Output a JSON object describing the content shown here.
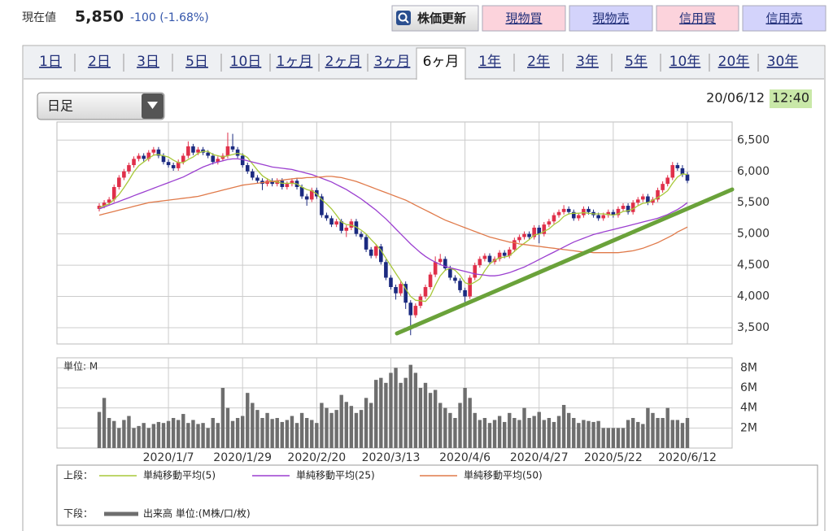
{
  "header": {
    "label": "現在値",
    "price": "5,850",
    "change": "-100 (-1.68%)"
  },
  "buttons": [
    "株価更新",
    "現物買",
    "現物売",
    "信用買",
    "信用売"
  ],
  "tabs": [
    "1日",
    "2日",
    "3日",
    "5日",
    "10日",
    "1ヶ月",
    "2ヶ月",
    "3ヶ月",
    "6ヶ月",
    "1年",
    "2年",
    "3年",
    "5年",
    "10年",
    "20年",
    "30年"
  ],
  "selected_tab": 8,
  "dropdown": "日足",
  "timestamp": {
    "date": "20/06/12",
    "time": "12:40"
  },
  "chart_data": [
    {
      "type": "candlestick",
      "color_up": "#e0304a",
      "color_down": "#1b2a80",
      "ylim": [
        3240,
        6790
      ],
      "yticks": [
        {
          "value": 3500,
          "label": "3,500"
        },
        {
          "value": 4000,
          "label": "4,000"
        },
        {
          "value": 4500,
          "label": "4,500"
        },
        {
          "value": 5000,
          "label": "5,000"
        },
        {
          "value": 5500,
          "label": "5,500"
        },
        {
          "value": 6000,
          "label": "6,000"
        },
        {
          "value": 6500,
          "label": "6,500"
        }
      ],
      "grid": true,
      "legend_prefix": "上段：",
      "open": [
        5400,
        5450,
        5500,
        5550,
        5750,
        5900,
        6000,
        6100,
        6200,
        6250,
        6200,
        6300,
        6350,
        6250,
        6150,
        6100,
        6050,
        6150,
        6250,
        6400,
        6300,
        6350,
        6300,
        6250,
        6150,
        6200,
        6250,
        6400,
        6350,
        6250,
        6100,
        6000,
        5900,
        5850,
        5800,
        5850,
        5800,
        5850,
        5750,
        5800,
        5850,
        5750,
        5600,
        5550,
        5700,
        5600,
        5300,
        5250,
        5150,
        5200,
        5050,
        5100,
        5200,
        5000,
        4950,
        4750,
        4650,
        4800,
        4550,
        4300,
        4150,
        4050,
        4200,
        3900,
        3700,
        3850,
        4000,
        4150,
        4350,
        4550,
        4600,
        4450,
        4300,
        4250,
        4100,
        4000,
        4300,
        4500,
        4600,
        4650,
        4550,
        4600,
        4700,
        4650,
        4750,
        4900,
        4950,
        5000,
        4950,
        5100,
        5000,
        5150,
        5200,
        5300,
        5350,
        5400,
        5350,
        5250,
        5300,
        5400,
        5350,
        5300,
        5250,
        5300,
        5350,
        5300,
        5400,
        5450,
        5350,
        5500,
        5550,
        5600,
        5500,
        5550,
        5700,
        5800,
        5900,
        6100,
        6050,
        5950
      ],
      "high": [
        5490,
        5540,
        5590,
        5790,
        5940,
        6040,
        6140,
        6240,
        6290,
        6290,
        6340,
        6390,
        6390,
        6290,
        6190,
        6140,
        6190,
        6290,
        6480,
        6440,
        6390,
        6390,
        6340,
        6290,
        6240,
        6290,
        6620,
        6600,
        6390,
        6290,
        6140,
        6040,
        5940,
        5890,
        5890,
        5890,
        5890,
        5890,
        5840,
        5890,
        5890,
        5790,
        5640,
        5740,
        5740,
        5640,
        5340,
        5290,
        5240,
        5240,
        5140,
        5240,
        5240,
        5040,
        4990,
        4790,
        4840,
        4840,
        4590,
        4340,
        4190,
        4240,
        4240,
        3940,
        3890,
        4040,
        4190,
        4390,
        4640,
        4680,
        4640,
        4490,
        4340,
        4290,
        4140,
        4340,
        4540,
        4640,
        4690,
        4690,
        4640,
        4740,
        4740,
        4790,
        4940,
        4990,
        5040,
        5040,
        5140,
        5140,
        5190,
        5240,
        5340,
        5390,
        5460,
        5440,
        5390,
        5340,
        5440,
        5440,
        5390,
        5340,
        5340,
        5390,
        5390,
        5440,
        5490,
        5490,
        5540,
        5590,
        5640,
        5640,
        5590,
        5740,
        5840,
        5940,
        6150,
        6140,
        6100,
        5990
      ],
      "low": [
        5360,
        5410,
        5460,
        5510,
        5710,
        5860,
        5960,
        6060,
        6160,
        6160,
        6160,
        6260,
        6210,
        6110,
        6060,
        6010,
        6010,
        6110,
        6210,
        6260,
        6260,
        6260,
        6210,
        6110,
        6110,
        6160,
        6210,
        6310,
        6210,
        6060,
        5960,
        5860,
        5810,
        5700,
        5760,
        5760,
        5760,
        5710,
        5710,
        5760,
        5710,
        5560,
        5450,
        5510,
        5560,
        5260,
        5210,
        5110,
        5110,
        5010,
        4950,
        5060,
        4960,
        4910,
        4710,
        4610,
        4610,
        4510,
        4260,
        4110,
        3950,
        4010,
        3800,
        3380,
        3660,
        3810,
        3960,
        4110,
        4310,
        4510,
        4410,
        4260,
        4210,
        4060,
        3850,
        3960,
        4260,
        4460,
        4560,
        4510,
        4510,
        4560,
        4610,
        4610,
        4710,
        4860,
        4910,
        4910,
        4910,
        4850,
        4960,
        5110,
        5160,
        5260,
        5310,
        5310,
        5210,
        5210,
        5260,
        5310,
        5260,
        5210,
        5210,
        5260,
        5260,
        5260,
        5360,
        5310,
        5310,
        5460,
        5510,
        5460,
        5460,
        5510,
        5660,
        5760,
        5860,
        6010,
        5910,
        5810
      ],
      "close": [
        5450,
        5500,
        5550,
        5750,
        5900,
        6000,
        6100,
        6200,
        6250,
        6200,
        6300,
        6350,
        6250,
        6150,
        6100,
        6050,
        6150,
        6250,
        6400,
        6300,
        6350,
        6300,
        6250,
        6150,
        6200,
        6250,
        6400,
        6350,
        6250,
        6100,
        6000,
        5900,
        5850,
        5800,
        5850,
        5800,
        5850,
        5750,
        5800,
        5850,
        5750,
        5600,
        5550,
        5700,
        5600,
        5300,
        5250,
        5150,
        5200,
        5050,
        5100,
        5200,
        5000,
        4950,
        4750,
        4650,
        4800,
        4550,
        4300,
        4150,
        4050,
        4200,
        3900,
        3700,
        3850,
        4000,
        4150,
        4350,
        4550,
        4600,
        4450,
        4300,
        4250,
        4100,
        4000,
        4300,
        4500,
        4600,
        4650,
        4550,
        4600,
        4700,
        4650,
        4750,
        4900,
        4950,
        5000,
        4950,
        5100,
        5000,
        5150,
        5200,
        5300,
        5350,
        5400,
        5350,
        5250,
        5300,
        5400,
        5350,
        5300,
        5250,
        5300,
        5350,
        5300,
        5400,
        5450,
        5350,
        5500,
        5550,
        5600,
        5500,
        5550,
        5700,
        5800,
        5900,
        6100,
        6050,
        5950,
        5850
      ],
      "series": [
        {
          "name": "単純移動平均(5)",
          "color": "#a8c83a",
          "values": [
            5420,
            5450,
            5480,
            5550,
            5630,
            5740,
            5860,
            5990,
            6090,
            6150,
            6210,
            6260,
            6270,
            6250,
            6230,
            6180,
            6140,
            6140,
            6190,
            6230,
            6290,
            6320,
            6320,
            6270,
            6250,
            6230,
            6250,
            6270,
            6290,
            6270,
            6220,
            6120,
            6020,
            5930,
            5880,
            5840,
            5830,
            5810,
            5810,
            5810,
            5800,
            5750,
            5710,
            5690,
            5640,
            5550,
            5480,
            5400,
            5300,
            5190,
            5150,
            5140,
            5110,
            5060,
            5000,
            4910,
            4830,
            4740,
            4610,
            4490,
            4370,
            4250,
            4120,
            4000,
            3940,
            3930,
            3920,
            4010,
            4180,
            4330,
            4420,
            4450,
            4420,
            4340,
            4220,
            4190,
            4230,
            4280,
            4410,
            4520,
            4580,
            4620,
            4630,
            4650,
            4720,
            4790,
            4850,
            4910,
            4980,
            5000,
            5040,
            5080,
            5150,
            5200,
            5280,
            5320,
            5330,
            5330,
            5340,
            5330,
            5320,
            5320,
            5320,
            5310,
            5300,
            5320,
            5360,
            5370,
            5400,
            5450,
            5490,
            5500,
            5540,
            5580,
            5630,
            5690,
            5810,
            5910,
            5960,
            5950
          ]
        },
        {
          "name": "単純移動平均(25)",
          "color": "#9b3fd0",
          "values": [
            5400,
            5430,
            5460,
            5490,
            5520,
            5550,
            5580,
            5610,
            5640,
            5670,
            5700,
            5730,
            5760,
            5790,
            5820,
            5850,
            5880,
            5910,
            5950,
            5990,
            6030,
            6070,
            6100,
            6130,
            6150,
            6170,
            6190,
            6200,
            6200,
            6190,
            6170,
            6150,
            6130,
            6110,
            6090,
            6070,
            6060,
            6050,
            6040,
            6030,
            6010,
            5990,
            5970,
            5950,
            5920,
            5890,
            5860,
            5830,
            5790,
            5750,
            5710,
            5660,
            5610,
            5560,
            5500,
            5440,
            5380,
            5310,
            5240,
            5160,
            5080,
            5000,
            4920,
            4840,
            4770,
            4700,
            4640,
            4590,
            4550,
            4510,
            4480,
            4460,
            4440,
            4420,
            4400,
            4380,
            4360,
            4350,
            4340,
            4330,
            4330,
            4340,
            4360,
            4380,
            4410,
            4440,
            4470,
            4510,
            4550,
            4590,
            4630,
            4670,
            4710,
            4750,
            4790,
            4830,
            4870,
            4900,
            4930,
            4960,
            4990,
            5010,
            5030,
            5050,
            5070,
            5090,
            5110,
            5130,
            5150,
            5170,
            5190,
            5210,
            5230,
            5250,
            5280,
            5310,
            5350,
            5390,
            5440,
            5500
          ]
        },
        {
          "name": "単純移動平均(50)",
          "color": "#e07a4a",
          "values": [
            5300,
            5320,
            5340,
            5360,
            5380,
            5400,
            5420,
            5440,
            5460,
            5480,
            5500,
            5510,
            5520,
            5530,
            5540,
            5550,
            5560,
            5570,
            5580,
            5590,
            5600,
            5620,
            5640,
            5660,
            5680,
            5700,
            5720,
            5740,
            5760,
            5780,
            5790,
            5800,
            5810,
            5820,
            5830,
            5840,
            5850,
            5860,
            5870,
            5880,
            5890,
            5890,
            5900,
            5900,
            5910,
            5910,
            5920,
            5920,
            5910,
            5900,
            5880,
            5860,
            5840,
            5810,
            5780,
            5750,
            5720,
            5690,
            5660,
            5630,
            5600,
            5570,
            5540,
            5500,
            5460,
            5420,
            5380,
            5340,
            5300,
            5260,
            5220,
            5190,
            5160,
            5130,
            5100,
            5070,
            5040,
            5010,
            4980,
            4950,
            4930,
            4910,
            4890,
            4870,
            4860,
            4840,
            4830,
            4820,
            4810,
            4800,
            4790,
            4780,
            4770,
            4760,
            4750,
            4740,
            4730,
            4720,
            4710,
            4710,
            4700,
            4700,
            4700,
            4700,
            4700,
            4700,
            4710,
            4720,
            4730,
            4750,
            4770,
            4800,
            4830,
            4860,
            4900,
            4940,
            4980,
            5030,
            5070,
            5110
          ]
        }
      ]
    },
    {
      "type": "bar",
      "unit_label": "単位: M",
      "legend_prefix": "下段：",
      "ylim": [
        0,
        9
      ],
      "yticks": [
        {
          "value": 2,
          "label": "2M"
        },
        {
          "value": 4,
          "label": "4M"
        },
        {
          "value": 6,
          "label": "6M"
        },
        {
          "value": 8,
          "label": "8M"
        }
      ],
      "categories": [
        null,
        null,
        null,
        null,
        null,
        null,
        null,
        null,
        null,
        null,
        null,
        null,
        null,
        null,
        "2020/1/7",
        null,
        null,
        null,
        null,
        null,
        null,
        null,
        null,
        null,
        null,
        null,
        null,
        null,
        null,
        "2020/1/29",
        null,
        null,
        null,
        null,
        null,
        null,
        null,
        null,
        null,
        null,
        null,
        null,
        null,
        null,
        "2020/2/20",
        null,
        null,
        null,
        null,
        null,
        null,
        null,
        null,
        null,
        null,
        null,
        null,
        null,
        null,
        "2020/3/13",
        null,
        null,
        null,
        null,
        null,
        null,
        null,
        null,
        null,
        null,
        null,
        null,
        null,
        null,
        "2020/4/6",
        null,
        null,
        null,
        null,
        null,
        null,
        null,
        null,
        null,
        null,
        null,
        null,
        null,
        null,
        "2020/4/27",
        null,
        null,
        null,
        null,
        null,
        null,
        null,
        null,
        null,
        null,
        null,
        null,
        null,
        null,
        "2020/5/22",
        null,
        null,
        null,
        null,
        null,
        null,
        null,
        null,
        null,
        null,
        null,
        null,
        null,
        null,
        "2020/6/12"
      ],
      "series": [
        {
          "name": "出来高 単位:(M株/口/枚)",
          "color": "#6e6e6e",
          "values": [
            3.6,
            5.0,
            3.0,
            2.7,
            2.0,
            2.8,
            3.2,
            2.0,
            2.2,
            2.5,
            2.0,
            2.4,
            2.6,
            2.5,
            2.7,
            3.0,
            2.8,
            3.4,
            2.5,
            2.8,
            2.4,
            2.5,
            2.0,
            3.0,
            2.5,
            6.0,
            4.0,
            2.7,
            3.0,
            3.2,
            5.5,
            4.5,
            3.8,
            3.0,
            3.5,
            2.9,
            3.0,
            2.6,
            2.8,
            3.2,
            2.5,
            3.5,
            3.0,
            2.8,
            2.5,
            4.5,
            4.0,
            3.5,
            3.8,
            5.3,
            4.6,
            4.2,
            3.5,
            3.8,
            5.0,
            4.5,
            6.8,
            7.0,
            6.5,
            7.5,
            8.0,
            6.5,
            7.0,
            8.3,
            7.5,
            6.0,
            6.5,
            5.5,
            5.8,
            4.5,
            4.0,
            3.5,
            3.0,
            4.5,
            6.0,
            5.0,
            3.5,
            2.8,
            3.0,
            2.5,
            2.8,
            3.2,
            2.6,
            3.5,
            3.0,
            2.8,
            4.0,
            3.0,
            3.2,
            3.6,
            2.8,
            3.0,
            2.6,
            3.2,
            4.3,
            3.5,
            3.0,
            2.5,
            2.8,
            2.7,
            2.6,
            2.7,
            2.0,
            2.0,
            2.0,
            2.0,
            2.0,
            2.8,
            3.0,
            2.6,
            2.4,
            4.0,
            3.5,
            3.0,
            3.0,
            4.0,
            2.8,
            2.8,
            2.5,
            3.0
          ]
        }
      ]
    }
  ]
}
